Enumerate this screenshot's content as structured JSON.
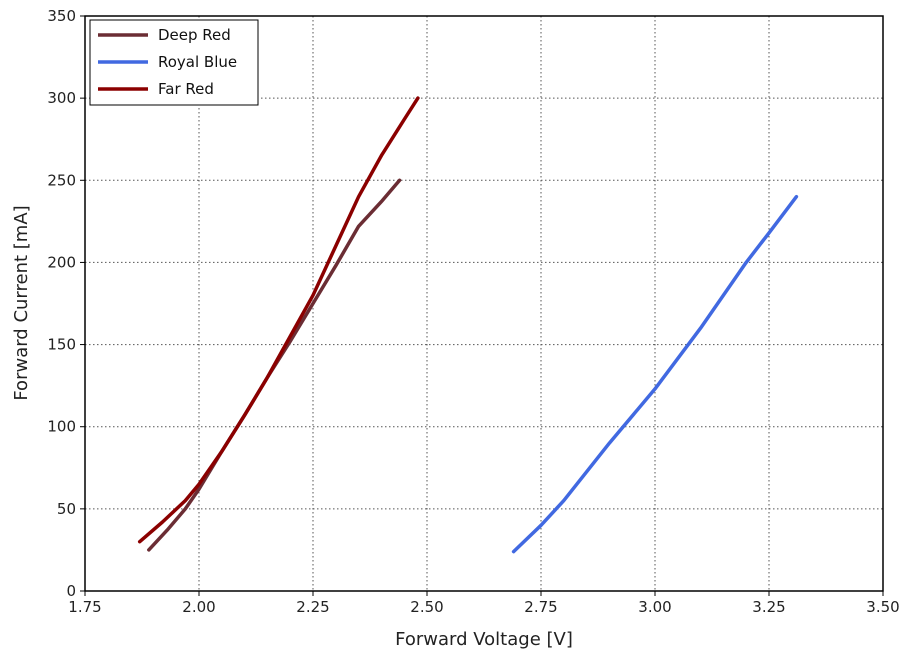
{
  "chart_data": {
    "type": "line",
    "title": "",
    "xlabel": "Forward Voltage [V]",
    "ylabel": "Forward Current [mA]",
    "xlim": [
      1.75,
      3.5
    ],
    "ylim": [
      0,
      350
    ],
    "x_ticks": [
      "1.75",
      "2.00",
      "2.25",
      "2.50",
      "2.75",
      "3.00",
      "3.25",
      "3.50"
    ],
    "y_ticks": [
      "0",
      "50",
      "100",
      "150",
      "200",
      "250",
      "300",
      "350"
    ],
    "grid": true,
    "legend_position": "top-left",
    "series": [
      {
        "name": "Deep Red",
        "color": "#6b2d34",
        "x": [
          1.89,
          1.93,
          1.97,
          2.0,
          2.05,
          2.1,
          2.15,
          2.2,
          2.25,
          2.3,
          2.35,
          2.4,
          2.44
        ],
        "y": [
          25,
          37,
          50,
          62,
          85,
          107,
          130,
          152,
          175,
          198,
          222,
          237,
          250
        ]
      },
      {
        "name": "Royal Blue",
        "color": "#4169e1",
        "x": [
          2.69,
          2.75,
          2.8,
          2.9,
          3.0,
          3.1,
          3.2,
          3.25,
          3.31
        ],
        "y": [
          24,
          40,
          55,
          90,
          123,
          160,
          200,
          218,
          240
        ]
      },
      {
        "name": "Far Red",
        "color": "#8b0000",
        "x": [
          1.87,
          1.92,
          1.97,
          2.0,
          2.05,
          2.1,
          2.15,
          2.2,
          2.25,
          2.3,
          2.35,
          2.4,
          2.45,
          2.48
        ],
        "y": [
          30,
          42,
          55,
          65,
          85,
          107,
          130,
          155,
          180,
          210,
          240,
          265,
          287,
          300
        ]
      }
    ]
  }
}
